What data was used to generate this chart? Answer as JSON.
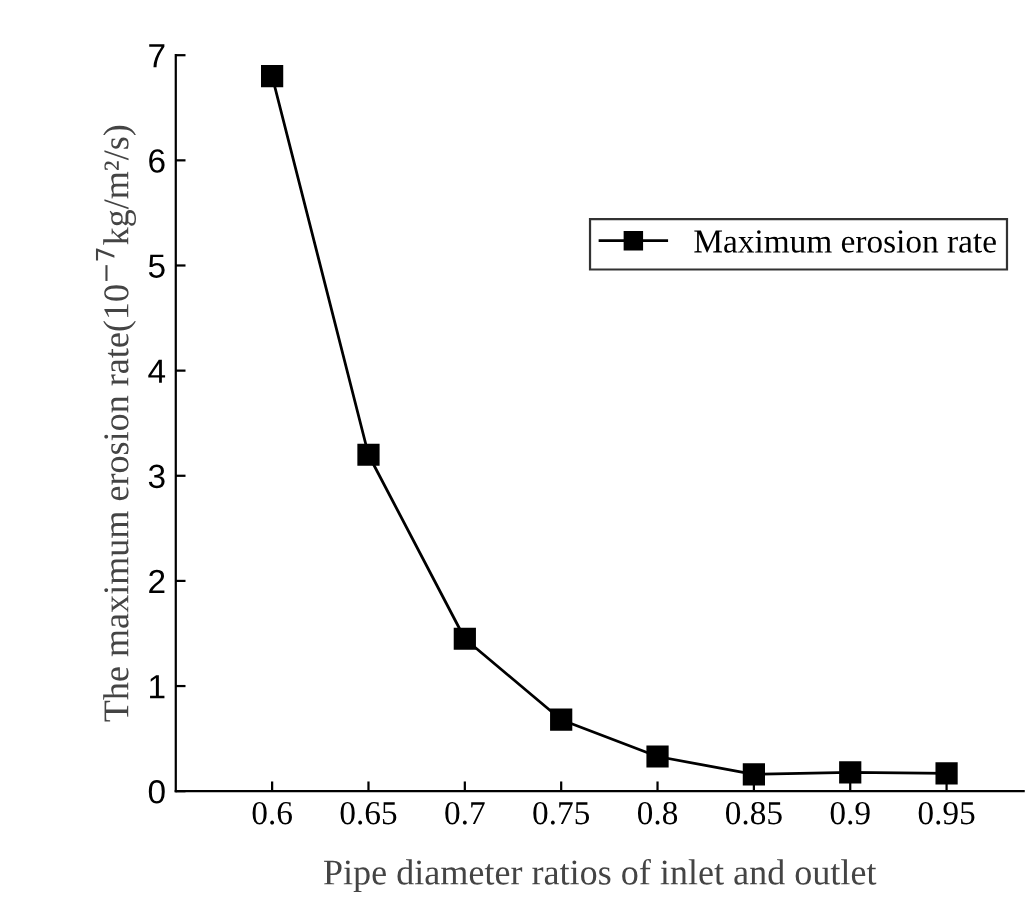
{
  "chart_data": {
    "type": "line",
    "xlabel": "Pipe diameter ratios of inlet and outlet",
    "ylabel": "The maximum erosion rate(10$^{−7}$kg/m²/s)",
    "x": [
      0.6,
      0.65,
      0.7,
      0.75,
      0.8,
      0.85,
      0.9,
      0.95
    ],
    "series": [
      {
        "name": "Maximum erosion rate",
        "color": "#000000",
        "values": [
          6.8,
          3.2,
          1.45,
          0.68,
          0.33,
          0.16,
          0.18,
          0.17
        ]
      }
    ],
    "xlim": [
      0.55,
      0.99
    ],
    "xticks": [
      0.6,
      0.65,
      0.7,
      0.75,
      0.8,
      0.85,
      0.9,
      0.95
    ],
    "ylim": [
      0,
      7
    ],
    "yticks": [
      0,
      1,
      2,
      3,
      4,
      5,
      6,
      7
    ],
    "marker": "square",
    "line_style": "solid",
    "grid": false,
    "legend": "top right"
  }
}
